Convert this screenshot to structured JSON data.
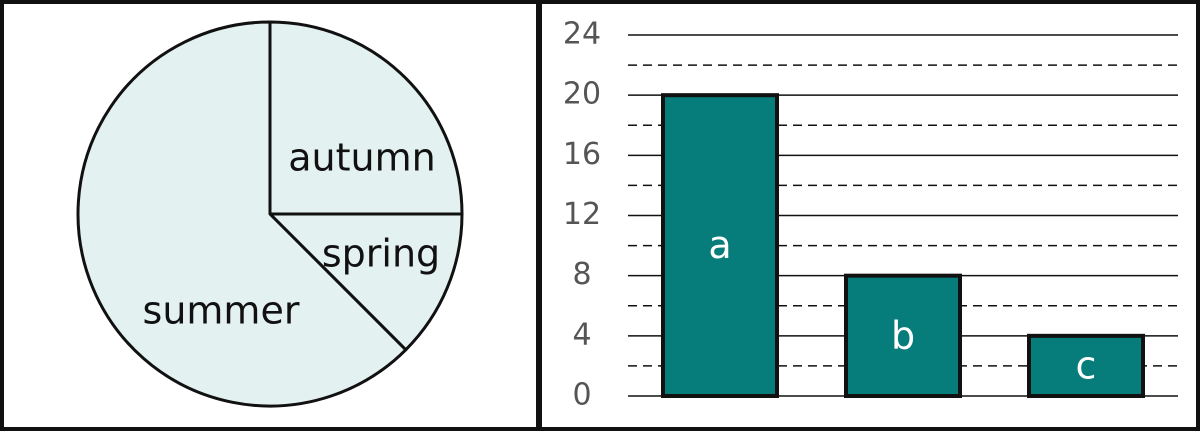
{
  "chart_data": [
    {
      "type": "pie",
      "slices": [
        {
          "label": "autumn",
          "value": 25
        },
        {
          "label": "spring",
          "value": 12.5
        },
        {
          "label": "summer",
          "value": 62.5
        }
      ],
      "colors": {
        "fill": "#e4f1f1",
        "stroke": "#111111"
      }
    },
    {
      "type": "bar",
      "categories": [
        "a",
        "b",
        "c"
      ],
      "values": [
        20,
        8,
        4
      ],
      "ylim": [
        0,
        24
      ],
      "yticks": [
        0,
        4,
        8,
        12,
        16,
        20,
        24
      ],
      "minor_gridlines": true,
      "colors": {
        "bar": "#067d7a",
        "bar_stroke": "#111111",
        "bar_label": "#ffffff",
        "tick_label": "#555555"
      }
    }
  ]
}
